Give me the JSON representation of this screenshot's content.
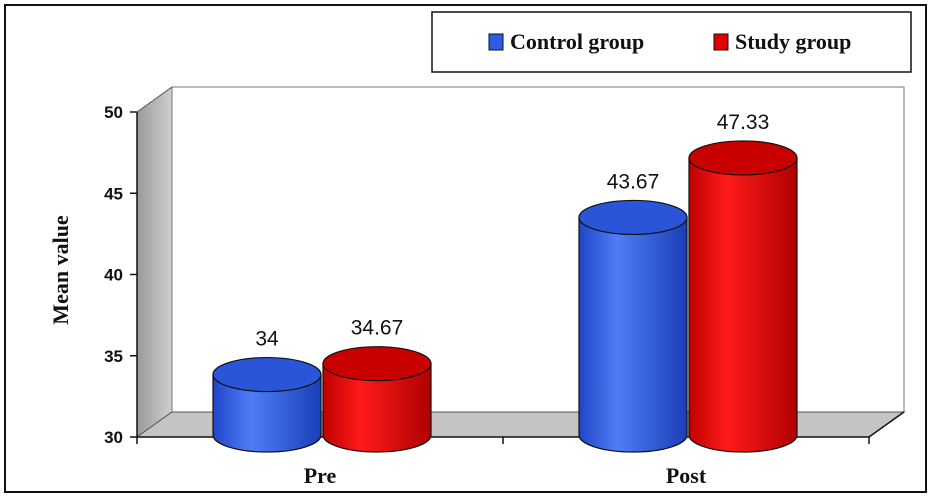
{
  "chart_data": {
    "type": "bar",
    "categories": [
      "Pre",
      "Post"
    ],
    "series": [
      {
        "name": "Control group",
        "values": [
          34,
          43.67
        ],
        "labels": [
          "34",
          "43.67"
        ],
        "color": "#2e5ce6"
      },
      {
        "name": "Study group",
        "values": [
          34.67,
          47.33
        ],
        "labels": [
          "34.67",
          "47.33"
        ],
        "color": "#e00000"
      }
    ],
    "title": "",
    "xlabel": "",
    "ylabel": "Mean value",
    "ylim": [
      30,
      50
    ],
    "yticks": [
      "30",
      "35",
      "40",
      "45",
      "50"
    ],
    "legend_position": "top-right",
    "style": "3d-cylinder"
  }
}
